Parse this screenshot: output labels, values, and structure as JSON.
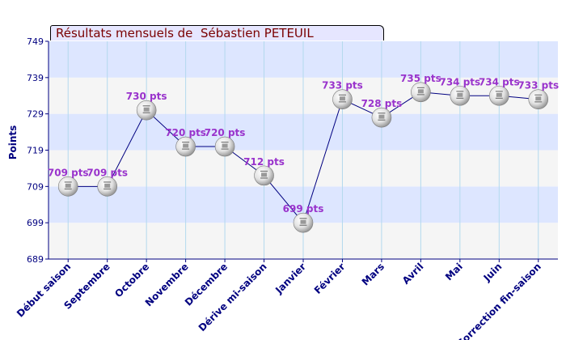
{
  "chart_data": {
    "type": "line",
    "title": "Résultats mensuels de  Sébastien PETEUIL",
    "ylabel": "Points",
    "xlabel": "",
    "ylim": [
      689,
      749
    ],
    "yticks": [
      689,
      699,
      709,
      719,
      729,
      739,
      749
    ],
    "grid": true,
    "categories": [
      "Début saison",
      "Septembre",
      "Octobre",
      "Novembre",
      "Décembre",
      "Dérive mi-saison",
      "Janvier",
      "Février",
      "Mars",
      "Avril",
      "Mai",
      "Juin",
      "Correction fin-saison"
    ],
    "values": [
      709,
      709,
      730,
      720,
      720,
      712,
      699,
      733,
      728,
      735,
      734,
      734,
      733
    ],
    "labels": [
      "709 pts",
      "709 pts",
      "730 pts",
      "720 pts",
      "720 pts",
      "712 pts",
      "699 pts",
      "733 pts",
      "728 pts",
      "735 pts",
      "734 pts",
      "734 pts",
      "733 pts"
    ],
    "colors": {
      "band_blue": "#dde6ff",
      "band_light": "#f5f5f5",
      "line": "#000080",
      "axis_text": "#000080",
      "label": "#9933cc",
      "title_text": "#7a0000",
      "title_bg": "#e6e6ff"
    },
    "marker_icon": "ping-pong-ball-icon"
  }
}
